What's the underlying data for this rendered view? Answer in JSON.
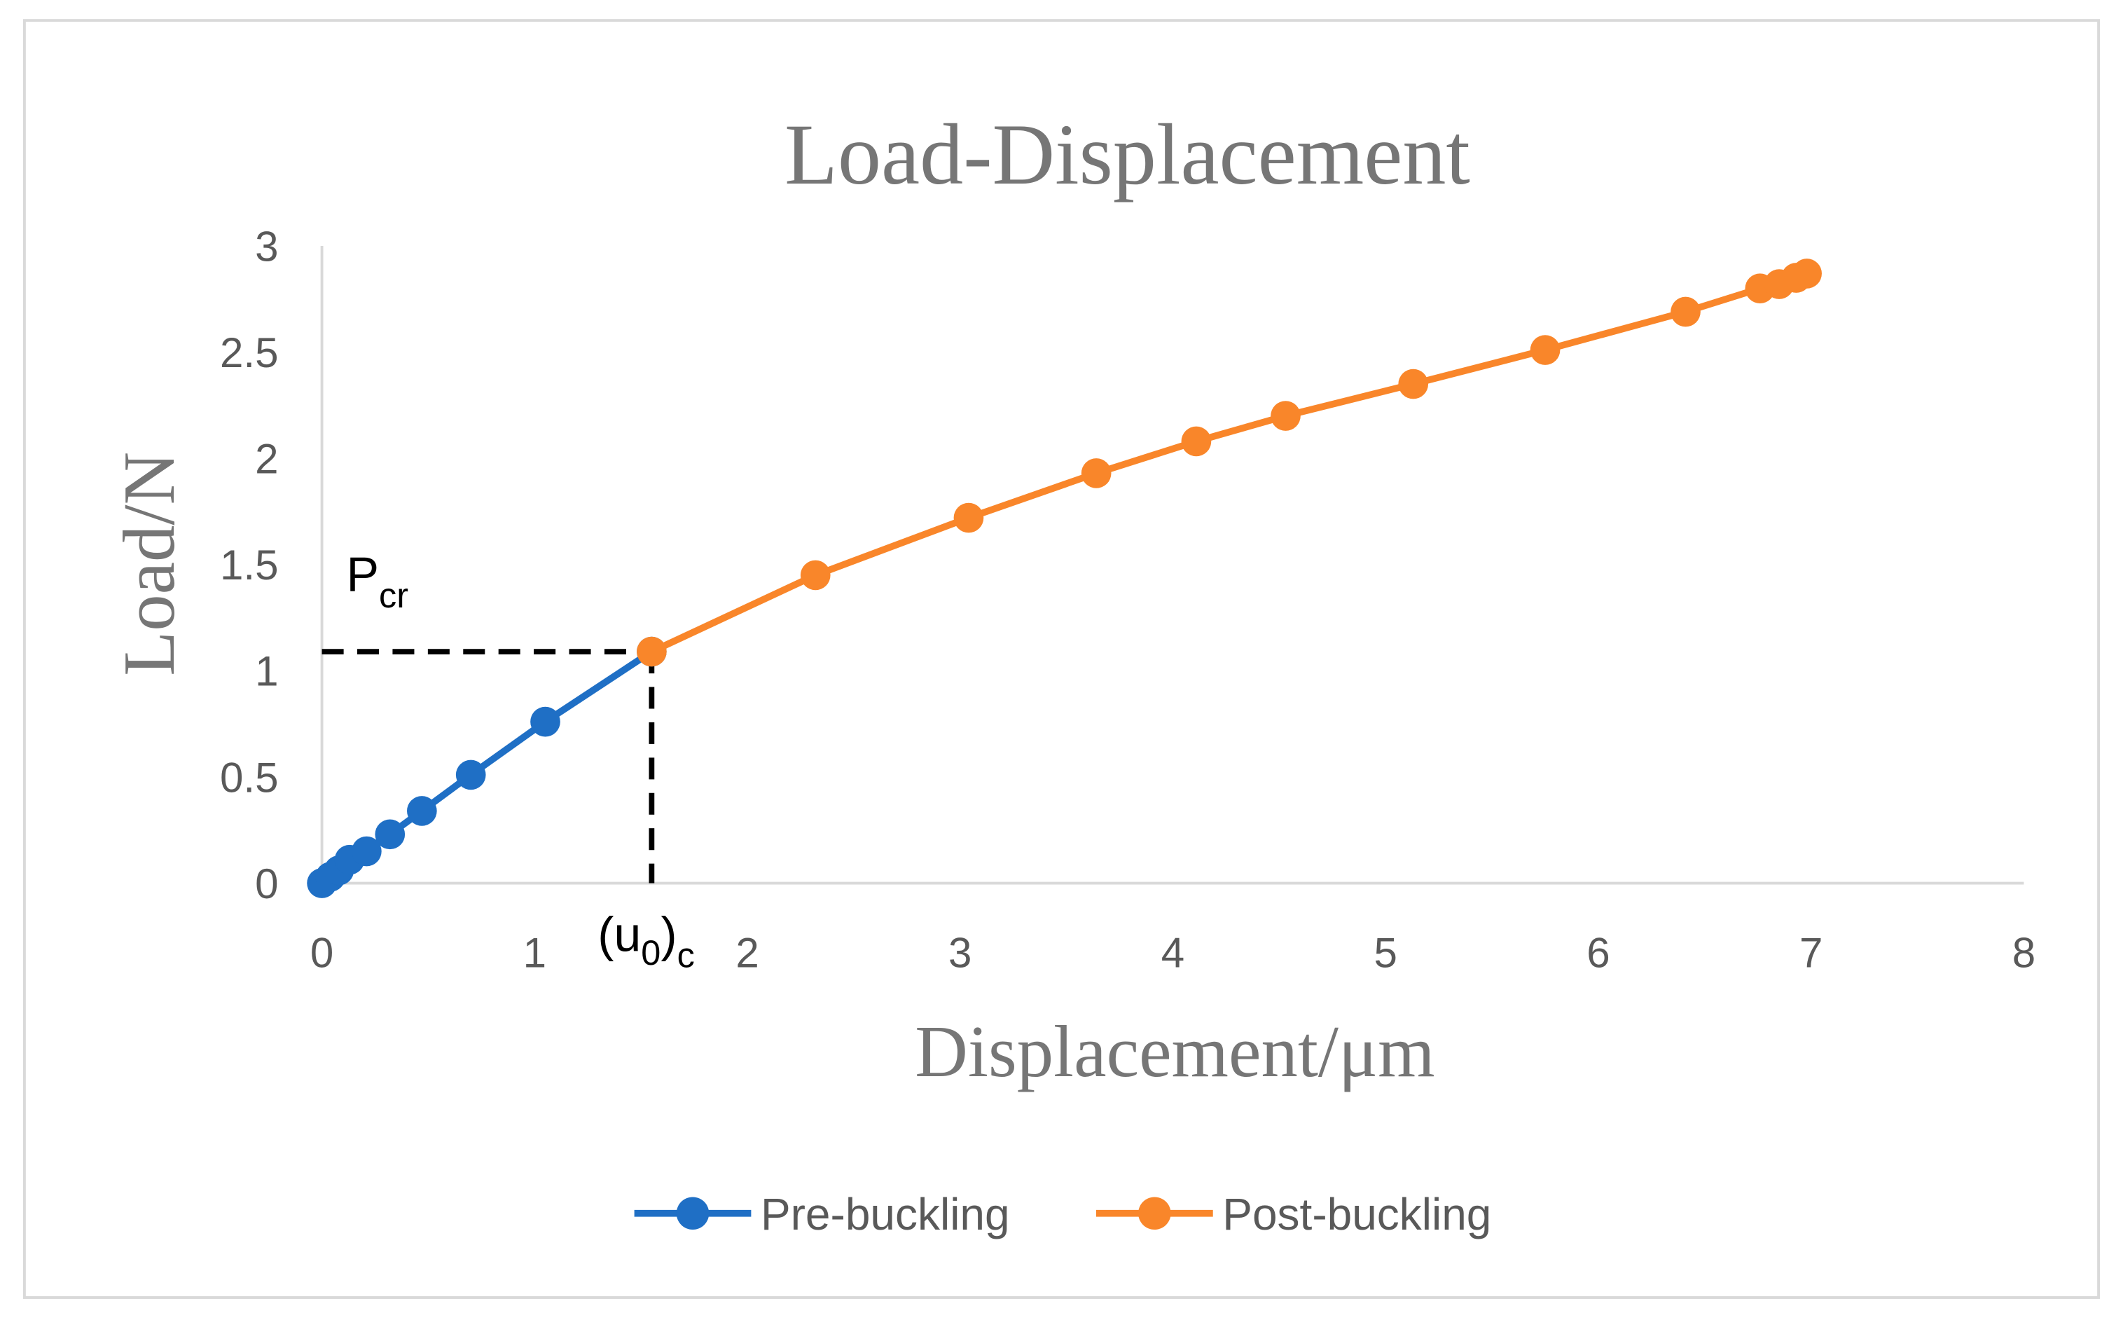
{
  "chart_data": {
    "type": "line",
    "title": "Load-Displacement",
    "x_label": "Displacement/μm",
    "y_label": "Load/N",
    "xlim": [
      0,
      8
    ],
    "xticks": [
      0,
      1,
      2,
      3,
      4,
      5,
      6,
      7,
      8
    ],
    "ylim": [
      0,
      3
    ],
    "yticks": [
      0,
      {
        "value": 0.5,
        "label": "0.5"
      },
      1,
      {
        "value": 1.5,
        "label": "1.5"
      },
      2,
      {
        "value": 2.5,
        "label": "2.5"
      },
      3
    ],
    "grid": false,
    "legend": "bottom",
    "annotations": {
      "critical_load": {
        "main": "P",
        "sub": "cr"
      },
      "critical_displacement": {
        "open": "(u",
        "sub": "0",
        "close": ")",
        "sub2": "c"
      }
    },
    "series": [
      {
        "name": "Pre-buckling",
        "color": "#1f6fc5",
        "x": [
          0,
          0.04,
          0.08,
          0.13,
          0.21,
          0.32,
          0.47,
          0.7,
          1.05,
          1.55
        ],
        "values": [
          0,
          0.03,
          0.06,
          0.11,
          0.15,
          0.23,
          0.34,
          0.51,
          0.76,
          1.09
        ]
      },
      {
        "name": "Post-buckling",
        "color": "#f9862a",
        "x": [
          1.55,
          2.32,
          3.04,
          3.64,
          4.11,
          4.53,
          5.13,
          5.75,
          6.41,
          6.76,
          6.85,
          6.93,
          6.98
        ],
        "values": [
          1.09,
          1.45,
          1.72,
          1.93,
          2.08,
          2.2,
          2.35,
          2.51,
          2.69,
          2.8,
          2.82,
          2.85,
          2.87
        ]
      }
    ]
  }
}
